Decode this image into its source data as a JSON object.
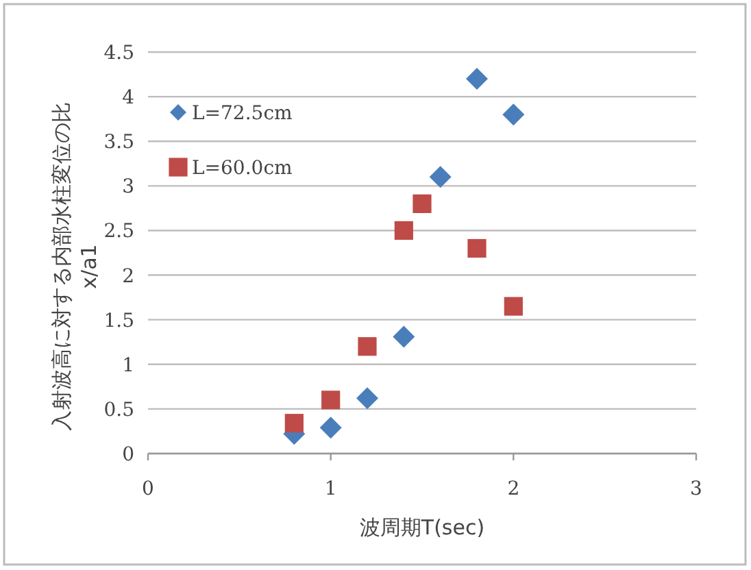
{
  "chart_data": {
    "type": "scatter",
    "xlabel": "波周期T(sec)",
    "ylabel": "入射波高に対する内部水柱変位の比 x/a1",
    "xlim": [
      0,
      3
    ],
    "xticks": [
      0,
      1,
      2,
      3
    ],
    "ylim": [
      0,
      4.5
    ],
    "yticks": [
      0,
      0.5,
      1,
      1.5,
      2,
      2.5,
      3,
      3.5,
      4,
      4.5
    ],
    "grid": "y",
    "legend": "top left",
    "series": [
      {
        "name": "L=72.5cm",
        "color": "#4a7ebb",
        "marker": "diamond",
        "x": [
          0.8,
          1.0,
          1.2,
          1.4,
          1.6,
          1.8,
          2.0
        ],
        "values": [
          0.22,
          0.29,
          0.62,
          1.31,
          3.1,
          4.2,
          3.8
        ]
      },
      {
        "name": "L=60.0cm",
        "color": "#be4b48",
        "marker": "square",
        "x": [
          0.8,
          1.0,
          1.2,
          1.4,
          1.5,
          1.8,
          2.0
        ],
        "values": [
          0.34,
          0.6,
          1.2,
          2.5,
          2.8,
          2.3,
          1.65
        ]
      }
    ]
  }
}
